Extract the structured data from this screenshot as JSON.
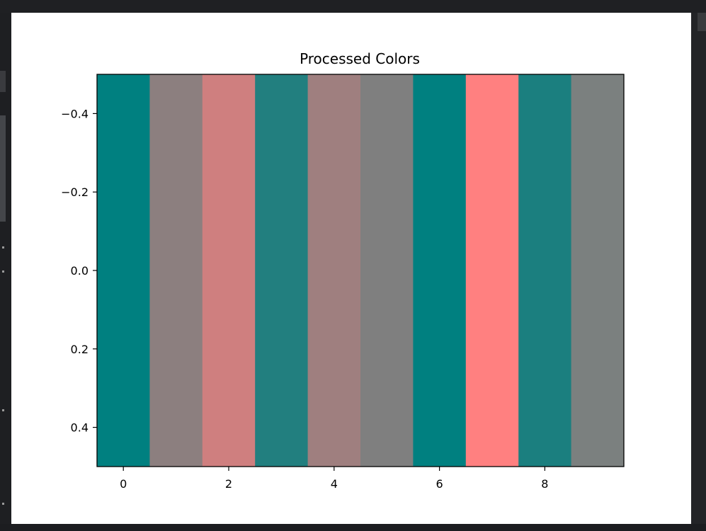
{
  "chart_data": {
    "type": "heatmap",
    "title": "Processed Colors",
    "xlabel": "",
    "ylabel": "",
    "xlim": [
      -0.5,
      9.5
    ],
    "ylim": [
      -0.5,
      0.5
    ],
    "y_inverted": true,
    "x_ticks": [
      0,
      2,
      4,
      6,
      8
    ],
    "x_tick_labels": [
      "0",
      "2",
      "4",
      "6",
      "8"
    ],
    "y_ticks": [
      -0.4,
      -0.2,
      0.0,
      0.2,
      0.4
    ],
    "y_tick_labels": [
      "−0.4",
      "−0.2",
      "0.0",
      "0.2",
      "0.4"
    ],
    "grid": false,
    "cells": [
      {
        "x": 0,
        "color": "#008080"
      },
      {
        "x": 1,
        "color": "#8c7f7f"
      },
      {
        "x": 2,
        "color": "#cf7f7f"
      },
      {
        "x": 3,
        "color": "#227f7f"
      },
      {
        "x": 4,
        "color": "#9f7f7f"
      },
      {
        "x": 5,
        "color": "#7f7f7f"
      },
      {
        "x": 6,
        "color": "#008080"
      },
      {
        "x": 7,
        "color": "#ff8080"
      },
      {
        "x": 8,
        "color": "#1b7f7f"
      },
      {
        "x": 9,
        "color": "#7b807f"
      }
    ]
  }
}
